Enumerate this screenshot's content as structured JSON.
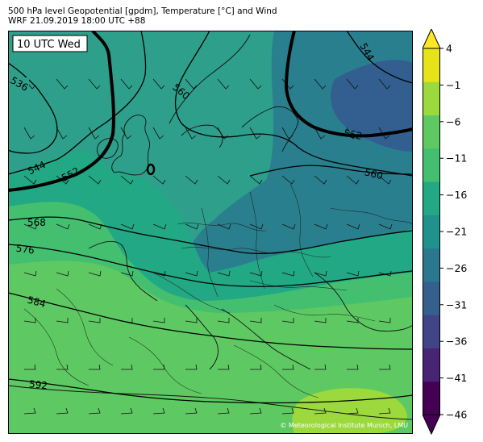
{
  "header": {
    "line1": "500 hPa level Geopotential [gpdm], Temperature [°C] and Wind",
    "line2": "WRF 21.09.2019 18:00 UTC +88"
  },
  "map": {
    "time_box": "10 UTC Wed",
    "credit": "© Meteorological Institute Munich, LMU",
    "contour_labels": [
      "536",
      "544",
      "552",
      "560",
      "568",
      "576",
      "584",
      "592",
      "544",
      "552",
      "560"
    ]
  },
  "colorbar": {
    "ticks": [
      "4",
      "−1",
      "−6",
      "−11",
      "−16",
      "−21",
      "−26",
      "−31",
      "−36",
      "−41",
      "−46"
    ],
    "colors": [
      "#440154",
      "#482475",
      "#414487",
      "#355f8d",
      "#2a788e",
      "#21918c",
      "#22a884",
      "#44bf70",
      "#5ec962",
      "#9bd93c",
      "#e5e419"
    ],
    "extend_low_color": "#440154",
    "extend_high_color": "#fde725"
  }
}
